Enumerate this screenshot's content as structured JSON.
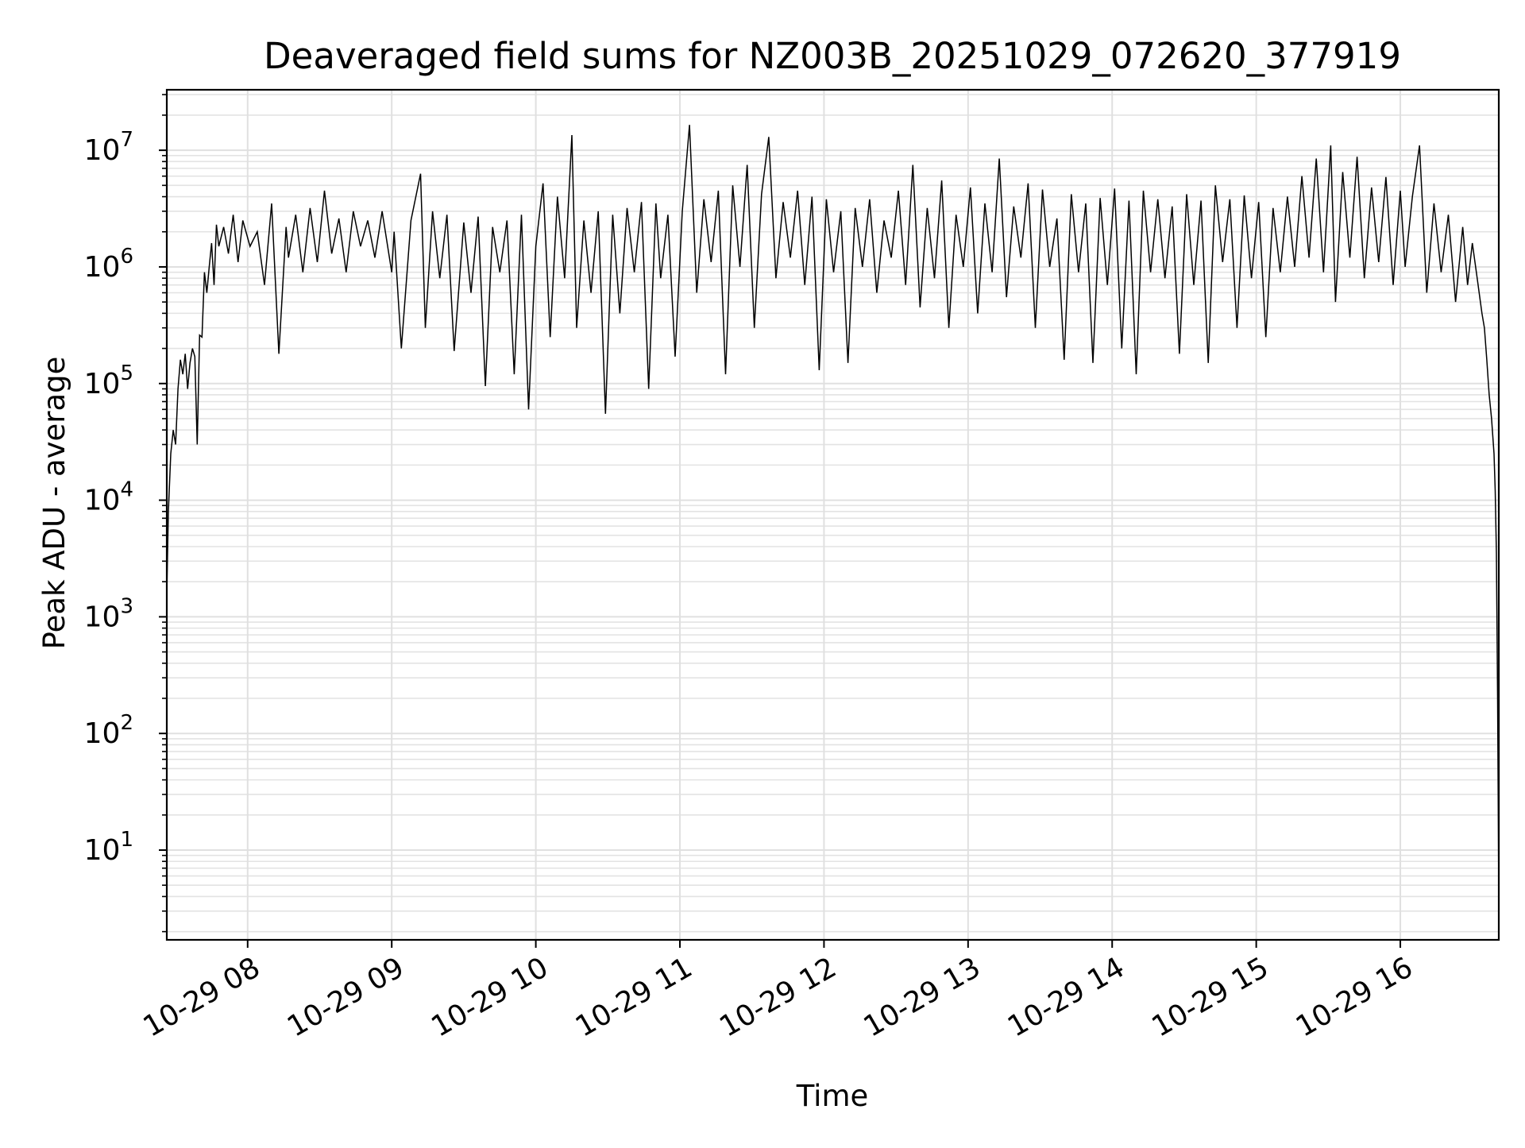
{
  "chart_data": {
    "type": "line",
    "title": "Deaveraged field sums for NZ003B_20251029_072620_377919",
    "xlabel": "Time",
    "ylabel": "Peak ADU - average",
    "yscale": "log",
    "ylim": [
      1.7,
      33000000
    ],
    "xlim": [
      "2025-10-29 07:26:20",
      "2025-10-29 16:41:00"
    ],
    "grid": true,
    "legend": "none",
    "line_color": "#000000",
    "x_ticks": [
      {
        "label": "10-29 08",
        "t": "2025-10-29 08:00"
      },
      {
        "label": "10-29 09",
        "t": "2025-10-29 09:00"
      },
      {
        "label": "10-29 10",
        "t": "2025-10-29 10:00"
      },
      {
        "label": "10-29 11",
        "t": "2025-10-29 11:00"
      },
      {
        "label": "10-29 12",
        "t": "2025-10-29 12:00"
      },
      {
        "label": "10-29 13",
        "t": "2025-10-29 13:00"
      },
      {
        "label": "10-29 14",
        "t": "2025-10-29 14:00"
      },
      {
        "label": "10-29 15",
        "t": "2025-10-29 15:00"
      },
      {
        "label": "10-29 16",
        "t": "2025-10-29 16:00"
      }
    ],
    "y_ticks": [
      {
        "base": "10",
        "exp": "1",
        "value": 10
      },
      {
        "base": "10",
        "exp": "2",
        "value": 100
      },
      {
        "base": "10",
        "exp": "3",
        "value": 1000
      },
      {
        "base": "10",
        "exp": "4",
        "value": 10000
      },
      {
        "base": "10",
        "exp": "5",
        "value": 100000
      },
      {
        "base": "10",
        "exp": "6",
        "value": 1000000
      },
      {
        "base": "10",
        "exp": "7",
        "value": 10000000
      }
    ],
    "series": [
      {
        "x": [
          "2025-10-29 07:26:20",
          "2025-10-29 07:27",
          "2025-10-29 07:28",
          "2025-10-29 07:29",
          "2025-10-29 07:30",
          "2025-10-29 07:31",
          "2025-10-29 07:32",
          "2025-10-29 07:33",
          "2025-10-29 07:34",
          "2025-10-29 07:35",
          "2025-10-29 07:36",
          "2025-10-29 07:37",
          "2025-10-29 07:38",
          "2025-10-29 07:39",
          "2025-10-29 07:40",
          "2025-10-29 07:41",
          "2025-10-29 07:42",
          "2025-10-29 07:43",
          "2025-10-29 07:44",
          "2025-10-29 07:45",
          "2025-10-29 07:46",
          "2025-10-29 07:47",
          "2025-10-29 07:48",
          "2025-10-29 07:50",
          "2025-10-29 07:52",
          "2025-10-29 07:54",
          "2025-10-29 07:56",
          "2025-10-29 07:58",
          "2025-10-29 08:01",
          "2025-10-29 08:04",
          "2025-10-29 08:07",
          "2025-10-29 08:10",
          "2025-10-29 08:13",
          "2025-10-29 08:16",
          "2025-10-29 08:17",
          "2025-10-29 08:20",
          "2025-10-29 08:23",
          "2025-10-29 08:26",
          "2025-10-29 08:29",
          "2025-10-29 08:32",
          "2025-10-29 08:35",
          "2025-10-29 08:38",
          "2025-10-29 08:41",
          "2025-10-29 08:44",
          "2025-10-29 08:47",
          "2025-10-29 08:50",
          "2025-10-29 08:53",
          "2025-10-29 08:56",
          "2025-10-29 09:00",
          "2025-10-29 09:01",
          "2025-10-29 09:04",
          "2025-10-29 09:08",
          "2025-10-29 09:12",
          "2025-10-29 09:14",
          "2025-10-29 09:17",
          "2025-10-29 09:20",
          "2025-10-29 09:23",
          "2025-10-29 09:26",
          "2025-10-29 09:30",
          "2025-10-29 09:33",
          "2025-10-29 09:36",
          "2025-10-29 09:39",
          "2025-10-29 09:42",
          "2025-10-29 09:45",
          "2025-10-29 09:48",
          "2025-10-29 09:51",
          "2025-10-29 09:54",
          "2025-10-29 09:57",
          "2025-10-29 10:00",
          "2025-10-29 10:03",
          "2025-10-29 10:06",
          "2025-10-29 10:09",
          "2025-10-29 10:12",
          "2025-10-29 10:15",
          "2025-10-29 10:17",
          "2025-10-29 10:20",
          "2025-10-29 10:23",
          "2025-10-29 10:26",
          "2025-10-29 10:29",
          "2025-10-29 10:32",
          "2025-10-29 10:35",
          "2025-10-29 10:38",
          "2025-10-29 10:41",
          "2025-10-29 10:44",
          "2025-10-29 10:47",
          "2025-10-29 10:50",
          "2025-10-29 10:52",
          "2025-10-29 10:55",
          "2025-10-29 10:58",
          "2025-10-29 11:01",
          "2025-10-29 11:04",
          "2025-10-29 11:07",
          "2025-10-29 11:10",
          "2025-10-29 11:13",
          "2025-10-29 11:16",
          "2025-10-29 11:19",
          "2025-10-29 11:22",
          "2025-10-29 11:25",
          "2025-10-29 11:28",
          "2025-10-29 11:31",
          "2025-10-29 11:34",
          "2025-10-29 11:37",
          "2025-10-29 11:40",
          "2025-10-29 11:43",
          "2025-10-29 11:46",
          "2025-10-29 11:49",
          "2025-10-29 11:52",
          "2025-10-29 11:55",
          "2025-10-29 11:58",
          "2025-10-29 12:01",
          "2025-10-29 12:04",
          "2025-10-29 12:07",
          "2025-10-29 12:10",
          "2025-10-29 12:13",
          "2025-10-29 12:16",
          "2025-10-29 12:19",
          "2025-10-29 12:22",
          "2025-10-29 12:25",
          "2025-10-29 12:28",
          "2025-10-29 12:31",
          "2025-10-29 12:34",
          "2025-10-29 12:37",
          "2025-10-29 12:40",
          "2025-10-29 12:43",
          "2025-10-29 12:46",
          "2025-10-29 12:49",
          "2025-10-29 12:52",
          "2025-10-29 12:55",
          "2025-10-29 12:58",
          "2025-10-29 13:01",
          "2025-10-29 13:04",
          "2025-10-29 13:07",
          "2025-10-29 13:10",
          "2025-10-29 13:13",
          "2025-10-29 13:16",
          "2025-10-29 13:19",
          "2025-10-29 13:22",
          "2025-10-29 13:25",
          "2025-10-29 13:28",
          "2025-10-29 13:31",
          "2025-10-29 13:34",
          "2025-10-29 13:37",
          "2025-10-29 13:40",
          "2025-10-29 13:43",
          "2025-10-29 13:46",
          "2025-10-29 13:49",
          "2025-10-29 13:52",
          "2025-10-29 13:55",
          "2025-10-29 13:58",
          "2025-10-29 14:01",
          "2025-10-29 14:04",
          "2025-10-29 14:07",
          "2025-10-29 14:10",
          "2025-10-29 14:13",
          "2025-10-29 14:16",
          "2025-10-29 14:19",
          "2025-10-29 14:22",
          "2025-10-29 14:25",
          "2025-10-29 14:28",
          "2025-10-29 14:31",
          "2025-10-29 14:34",
          "2025-10-29 14:37",
          "2025-10-29 14:40",
          "2025-10-29 14:43",
          "2025-10-29 14:46",
          "2025-10-29 14:49",
          "2025-10-29 14:52",
          "2025-10-29 14:55",
          "2025-10-29 14:58",
          "2025-10-29 15:01",
          "2025-10-29 15:04",
          "2025-10-29 15:07",
          "2025-10-29 15:10",
          "2025-10-29 15:13",
          "2025-10-29 15:16",
          "2025-10-29 15:19",
          "2025-10-29 15:22",
          "2025-10-29 15:25",
          "2025-10-29 15:28",
          "2025-10-29 15:31",
          "2025-10-29 15:33",
          "2025-10-29 15:36",
          "2025-10-29 15:39",
          "2025-10-29 15:42",
          "2025-10-29 15:45",
          "2025-10-29 15:48",
          "2025-10-29 15:51",
          "2025-10-29 15:54",
          "2025-10-29 15:57",
          "2025-10-29 16:00",
          "2025-10-29 16:02",
          "2025-10-29 16:05",
          "2025-10-29 16:08",
          "2025-10-29 16:11",
          "2025-10-29 16:14",
          "2025-10-29 16:17",
          "2025-10-29 16:20",
          "2025-10-29 16:23",
          "2025-10-29 16:26",
          "2025-10-29 16:28",
          "2025-10-29 16:30",
          "2025-10-29 16:32",
          "2025-10-29 16:34",
          "2025-10-29 16:35",
          "2025-10-29 16:36",
          "2025-10-29 16:37",
          "2025-10-29 16:38",
          "2025-10-29 16:39",
          "2025-10-29 16:39:30",
          "2025-10-29 16:40",
          "2025-10-29 16:40:30",
          "2025-10-29 16:41"
        ],
        "y": [
          1600,
          8000,
          25000,
          40000,
          30000,
          90000,
          160000,
          120000,
          180000,
          90000,
          150000,
          200000,
          170000,
          30000,
          260000,
          250000,
          900000,
          600000,
          1000000,
          1600000,
          700000,
          2300000,
          1500000,
          2200000,
          1300000,
          2800000,
          1100000,
          2500000,
          1500000,
          2000000,
          700000,
          3500000,
          180000,
          2200000,
          1200000,
          2800000,
          900000,
          3200000,
          1100000,
          4500000,
          1300000,
          2600000,
          900000,
          3000000,
          1500000,
          2500000,
          1200000,
          3000000,
          900000,
          2000000,
          200000,
          2500000,
          6300000,
          300000,
          3000000,
          800000,
          2800000,
          190000,
          2400000,
          600000,
          2700000,
          95000,
          2200000,
          900000,
          2500000,
          120000,
          2800000,
          60000,
          1500000,
          5200000,
          250000,
          4000000,
          800000,
          13500000,
          300000,
          2500000,
          600000,
          3000000,
          55000,
          2800000,
          400000,
          3200000,
          900000,
          3600000,
          90000,
          3500000,
          800000,
          2800000,
          170000,
          3000000,
          16500000,
          600000,
          3800000,
          1100000,
          4500000,
          120000,
          5000000,
          1000000,
          7500000,
          300000,
          4200000,
          13000000,
          800000,
          3600000,
          1200000,
          4500000,
          700000,
          4000000,
          130000,
          3800000,
          900000,
          3000000,
          150000,
          3200000,
          1000000,
          3800000,
          600000,
          2500000,
          1200000,
          4500000,
          700000,
          7500000,
          450000,
          3200000,
          800000,
          5500000,
          300000,
          2800000,
          1000000,
          4800000,
          400000,
          3500000,
          900000,
          8500000,
          550000,
          3300000,
          1200000,
          5200000,
          300000,
          4600000,
          1000000,
          2600000,
          160000,
          4200000,
          900000,
          3500000,
          150000,
          3900000,
          700000,
          4700000,
          200000,
          3700000,
          120000,
          4500000,
          900000,
          3800000,
          800000,
          3300000,
          180000,
          4200000,
          700000,
          3700000,
          150000,
          5000000,
          1100000,
          3800000,
          300000,
          4100000,
          800000,
          3600000,
          250000,
          3200000,
          900000,
          4000000,
          1000000,
          6000000,
          1200000,
          8500000,
          900000,
          11000000,
          500000,
          6500000,
          1200000,
          8800000,
          800000,
          4800000,
          1100000,
          5900000,
          700000,
          4500000,
          1000000,
          4000000,
          11000000,
          600000,
          3500000,
          900000,
          2800000,
          500000,
          2200000,
          700000,
          1600000,
          800000,
          400000,
          300000,
          160000,
          80000,
          50000,
          25000,
          12000,
          3500,
          200,
          4
        ]
      }
    ]
  }
}
